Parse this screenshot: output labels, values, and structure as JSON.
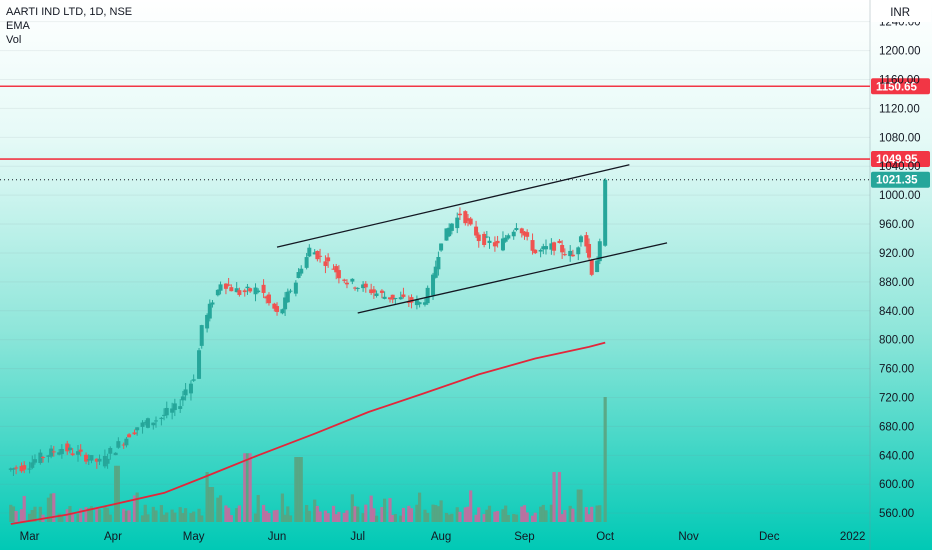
{
  "legend": {
    "symbol_line": "AARTI IND LTD, 1D, NSE",
    "indicator_1": "EMA",
    "indicator_2": "Vol"
  },
  "chart_data": {
    "type": "candlestick",
    "currency": "INR",
    "ylim": [
      545,
      1252
    ],
    "y_ticks": [
      560,
      600,
      640,
      680,
      720,
      760,
      800,
      840,
      880,
      920,
      960,
      1000,
      1040,
      1080,
      1120,
      1160,
      1200,
      1240
    ],
    "y_tick_labels": [
      "560.00",
      "600.00",
      "640.00",
      "680.00",
      "720.00",
      "760.00",
      "800.00",
      "840.00",
      "880.00",
      "920.00",
      "960.00",
      "1000.00",
      "1040.00",
      "1080.00",
      "1120.00",
      "1160.00",
      "1200.00",
      "1240.00"
    ],
    "x_labels": [
      "Mar",
      "Apr",
      "May",
      "Jun",
      "Jul",
      "Aug",
      "Sep",
      "Oct",
      "Nov",
      "Dec",
      "2022"
    ],
    "horizontal_lines": [
      {
        "price": 1150.65,
        "label": "1150.65",
        "color": "#f23645"
      },
      {
        "price": 1049.95,
        "label": "1049.95",
        "color": "#f23645"
      }
    ],
    "last_price": {
      "price": 1021.35,
      "label": "1021.35",
      "color": "#26a69a"
    },
    "channel_lines": [
      {
        "from": {
          "date": "2021-06-01",
          "price": 928
        },
        "to": {
          "date": "2021-10-10",
          "price": 1042
        }
      },
      {
        "from": {
          "date": "2021-07-01",
          "price": 837
        },
        "to": {
          "date": "2021-10-24",
          "price": 934
        }
      }
    ],
    "colors": {
      "up": "#26a69a",
      "down": "#ef5350",
      "vol_up": "#5aa37f",
      "vol_down": "#c86a9e",
      "ema": "#e3263a",
      "background_top": "#ffffff",
      "background_bottom": "#00c9b5"
    },
    "series": [
      {
        "name": "Price",
        "ohlc_keypoints": [
          [
            "2021-02-22",
            620,
            630,
            610,
            625
          ],
          [
            "2021-03-01",
            625,
            645,
            620,
            640
          ],
          [
            "2021-03-08",
            640,
            665,
            635,
            650
          ],
          [
            "2021-03-15",
            650,
            655,
            630,
            640
          ],
          [
            "2021-03-22",
            640,
            650,
            615,
            630
          ],
          [
            "2021-03-29",
            630,
            660,
            625,
            655
          ],
          [
            "2021-04-05",
            655,
            690,
            650,
            680
          ],
          [
            "2021-04-12",
            680,
            700,
            665,
            690
          ],
          [
            "2021-04-19",
            690,
            715,
            680,
            705
          ],
          [
            "2021-04-26",
            705,
            760,
            700,
            750
          ],
          [
            "2021-05-03",
            750,
            830,
            745,
            820
          ],
          [
            "2021-05-06",
            820,
            905,
            815,
            880
          ],
          [
            "2021-05-13",
            880,
            895,
            850,
            865
          ],
          [
            "2021-05-20",
            865,
            900,
            835,
            870
          ],
          [
            "2021-05-27",
            870,
            880,
            825,
            835
          ],
          [
            "2021-06-03",
            835,
            875,
            830,
            870
          ],
          [
            "2021-06-08",
            870,
            930,
            865,
            925
          ],
          [
            "2021-06-15",
            925,
            930,
            895,
            905
          ],
          [
            "2021-06-22",
            905,
            912,
            870,
            880
          ],
          [
            "2021-06-29",
            880,
            890,
            860,
            870
          ],
          [
            "2021-07-06",
            870,
            880,
            850,
            860
          ],
          [
            "2021-07-13",
            860,
            870,
            845,
            855
          ],
          [
            "2021-07-20",
            855,
            865,
            845,
            850
          ],
          [
            "2021-07-26",
            850,
            870,
            846,
            865
          ],
          [
            "2021-07-29",
            865,
            950,
            860,
            940
          ],
          [
            "2021-08-03",
            940,
            990,
            935,
            975
          ],
          [
            "2021-08-10",
            975,
            980,
            925,
            940
          ],
          [
            "2021-08-17",
            940,
            970,
            920,
            930
          ],
          [
            "2021-08-24",
            930,
            980,
            925,
            960
          ],
          [
            "2021-08-31",
            960,
            965,
            905,
            920
          ],
          [
            "2021-09-07",
            920,
            945,
            900,
            930
          ],
          [
            "2021-09-14",
            930,
            940,
            905,
            915
          ],
          [
            "2021-09-21",
            915,
            965,
            910,
            950
          ],
          [
            "2021-09-24",
            950,
            955,
            880,
            895
          ],
          [
            "2021-09-28",
            895,
            940,
            890,
            930
          ],
          [
            "2021-10-01",
            930,
            1025,
            925,
            1021.35
          ]
        ]
      },
      {
        "name": "EMA",
        "points": [
          [
            "2021-02-22",
            545
          ],
          [
            "2021-03-15",
            558
          ],
          [
            "2021-04-01",
            572
          ],
          [
            "2021-04-20",
            588
          ],
          [
            "2021-05-05",
            610
          ],
          [
            "2021-05-25",
            640
          ],
          [
            "2021-06-15",
            670
          ],
          [
            "2021-07-05",
            700
          ],
          [
            "2021-07-25",
            725
          ],
          [
            "2021-08-15",
            752
          ],
          [
            "2021-09-05",
            774
          ],
          [
            "2021-09-25",
            790
          ],
          [
            "2021-10-01",
            796
          ]
        ]
      },
      {
        "name": "Vol",
        "peaks": [
          {
            "date": "2021-04-02",
            "level": 0.45
          },
          {
            "date": "2021-05-07",
            "level": 0.28
          },
          {
            "date": "2021-05-21",
            "level": 0.55
          },
          {
            "date": "2021-06-09",
            "level": 0.52
          },
          {
            "date": "2021-09-13",
            "level": 0.4
          },
          {
            "date": "2021-09-21",
            "level": 0.26
          },
          {
            "date": "2021-10-01",
            "level": 1.0
          }
        ]
      }
    ]
  }
}
